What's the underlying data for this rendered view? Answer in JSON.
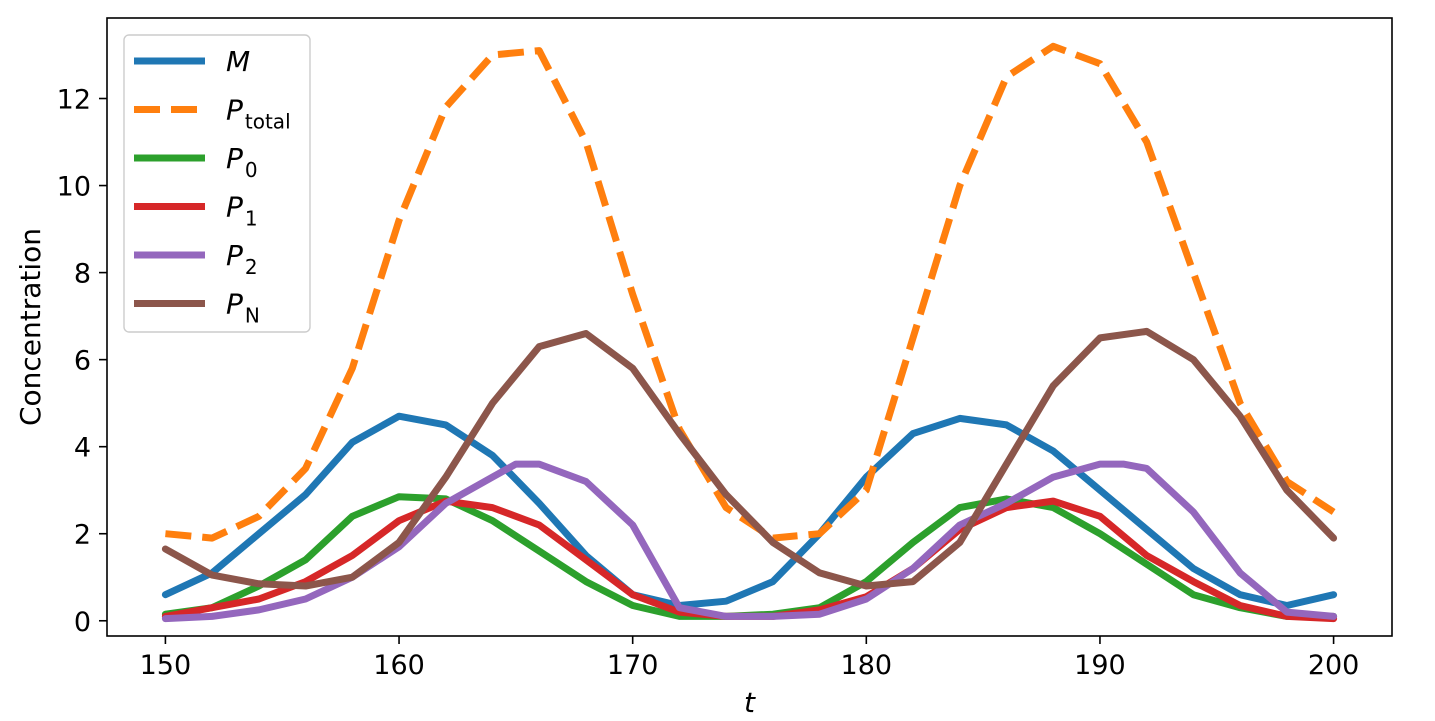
{
  "chart_data": {
    "type": "line",
    "xlabel": "t",
    "ylabel": "Concentration",
    "xlim": [
      147.5,
      202.5
    ],
    "ylim": [
      -0.35,
      13.85
    ],
    "xticks": [
      150,
      160,
      170,
      180,
      190,
      200
    ],
    "yticks": [
      0,
      2,
      4,
      6,
      8,
      10,
      12
    ],
    "grid": false,
    "legend_position": "top-left",
    "series": [
      {
        "name": "M",
        "label_main": "P",
        "label_sub": "",
        "label_text": "M",
        "color": "#1f77b4",
        "dashed": false,
        "x": [
          150,
          152,
          154,
          156,
          158,
          160,
          162,
          164,
          166,
          168,
          170,
          172,
          174,
          176,
          178,
          180,
          182,
          184,
          186,
          188,
          190,
          192,
          194,
          196,
          198,
          200
        ],
        "y": [
          0.6,
          1.1,
          2.0,
          2.9,
          4.1,
          4.7,
          4.5,
          3.8,
          2.7,
          1.5,
          0.6,
          0.35,
          0.45,
          0.9,
          2.0,
          3.3,
          4.3,
          4.65,
          4.5,
          3.9,
          3.0,
          2.1,
          1.2,
          0.6,
          0.35,
          0.6
        ]
      },
      {
        "name": "P_total",
        "label_main": "P",
        "label_sub": "total",
        "label_text": "",
        "color": "#ff7f0e",
        "dashed": true,
        "x": [
          150,
          152,
          154,
          156,
          158,
          160,
          162,
          164,
          166,
          168,
          170,
          172,
          174,
          176,
          178,
          180,
          182,
          184,
          186,
          188,
          190,
          192,
          194,
          196,
          198,
          200
        ],
        "y": [
          2.0,
          1.9,
          2.4,
          3.5,
          5.8,
          9.2,
          11.8,
          13.0,
          13.1,
          11.0,
          7.5,
          4.4,
          2.6,
          1.9,
          2.0,
          3.0,
          6.5,
          10.0,
          12.5,
          13.2,
          12.8,
          11.0,
          8.0,
          5.0,
          3.2,
          2.5
        ]
      },
      {
        "name": "P_0",
        "label_main": "P",
        "label_sub": "0",
        "label_text": "",
        "color": "#2ca02c",
        "dashed": false,
        "x": [
          150,
          152,
          154,
          156,
          158,
          160,
          162,
          164,
          166,
          168,
          170,
          172,
          174,
          176,
          178,
          180,
          182,
          184,
          186,
          188,
          190,
          192,
          194,
          196,
          198,
          200
        ],
        "y": [
          0.15,
          0.3,
          0.8,
          1.4,
          2.4,
          2.85,
          2.8,
          2.3,
          1.6,
          0.9,
          0.35,
          0.1,
          0.1,
          0.15,
          0.3,
          0.9,
          1.8,
          2.6,
          2.8,
          2.6,
          2.0,
          1.3,
          0.6,
          0.3,
          0.1,
          0.1
        ]
      },
      {
        "name": "P_1",
        "label_main": "P",
        "label_sub": "1",
        "label_text": "",
        "color": "#d62728",
        "dashed": false,
        "x": [
          150,
          152,
          154,
          156,
          158,
          160,
          162,
          164,
          166,
          168,
          170,
          172,
          174,
          176,
          178,
          180,
          182,
          184,
          186,
          188,
          190,
          192,
          194,
          196,
          198,
          200
        ],
        "y": [
          0.1,
          0.3,
          0.5,
          0.9,
          1.5,
          2.3,
          2.75,
          2.6,
          2.2,
          1.4,
          0.6,
          0.2,
          0.1,
          0.1,
          0.25,
          0.55,
          1.2,
          2.1,
          2.6,
          2.75,
          2.4,
          1.5,
          0.9,
          0.35,
          0.1,
          0.05
        ]
      },
      {
        "name": "P_2",
        "label_main": "P",
        "label_sub": "2",
        "label_text": "",
        "color": "#9467bd",
        "dashed": false,
        "x": [
          150,
          152,
          154,
          156,
          158,
          160,
          162,
          164,
          165,
          166,
          168,
          170,
          172,
          174,
          176,
          178,
          180,
          182,
          184,
          186,
          188,
          190,
          191,
          192,
          194,
          196,
          198,
          200
        ],
        "y": [
          0.05,
          0.1,
          0.25,
          0.5,
          1.0,
          1.7,
          2.7,
          3.3,
          3.6,
          3.6,
          3.2,
          2.2,
          0.3,
          0.1,
          0.1,
          0.15,
          0.5,
          1.2,
          2.2,
          2.7,
          3.3,
          3.6,
          3.6,
          3.5,
          2.5,
          1.1,
          0.2,
          0.1
        ]
      },
      {
        "name": "P_N",
        "label_main": "P",
        "label_sub": "N",
        "label_text": "",
        "color": "#8c564b",
        "dashed": false,
        "x": [
          150,
          152,
          154,
          156,
          158,
          160,
          162,
          164,
          166,
          168,
          170,
          172,
          174,
          176,
          178,
          180,
          182,
          184,
          186,
          188,
          190,
          192,
          194,
          196,
          198,
          200
        ],
        "y": [
          1.65,
          1.05,
          0.85,
          0.8,
          1.0,
          1.8,
          3.3,
          5.0,
          6.3,
          6.6,
          5.8,
          4.3,
          2.9,
          1.8,
          1.1,
          0.8,
          0.9,
          1.8,
          3.6,
          5.4,
          6.5,
          6.65,
          6.0,
          4.7,
          3.0,
          1.9
        ]
      }
    ]
  }
}
